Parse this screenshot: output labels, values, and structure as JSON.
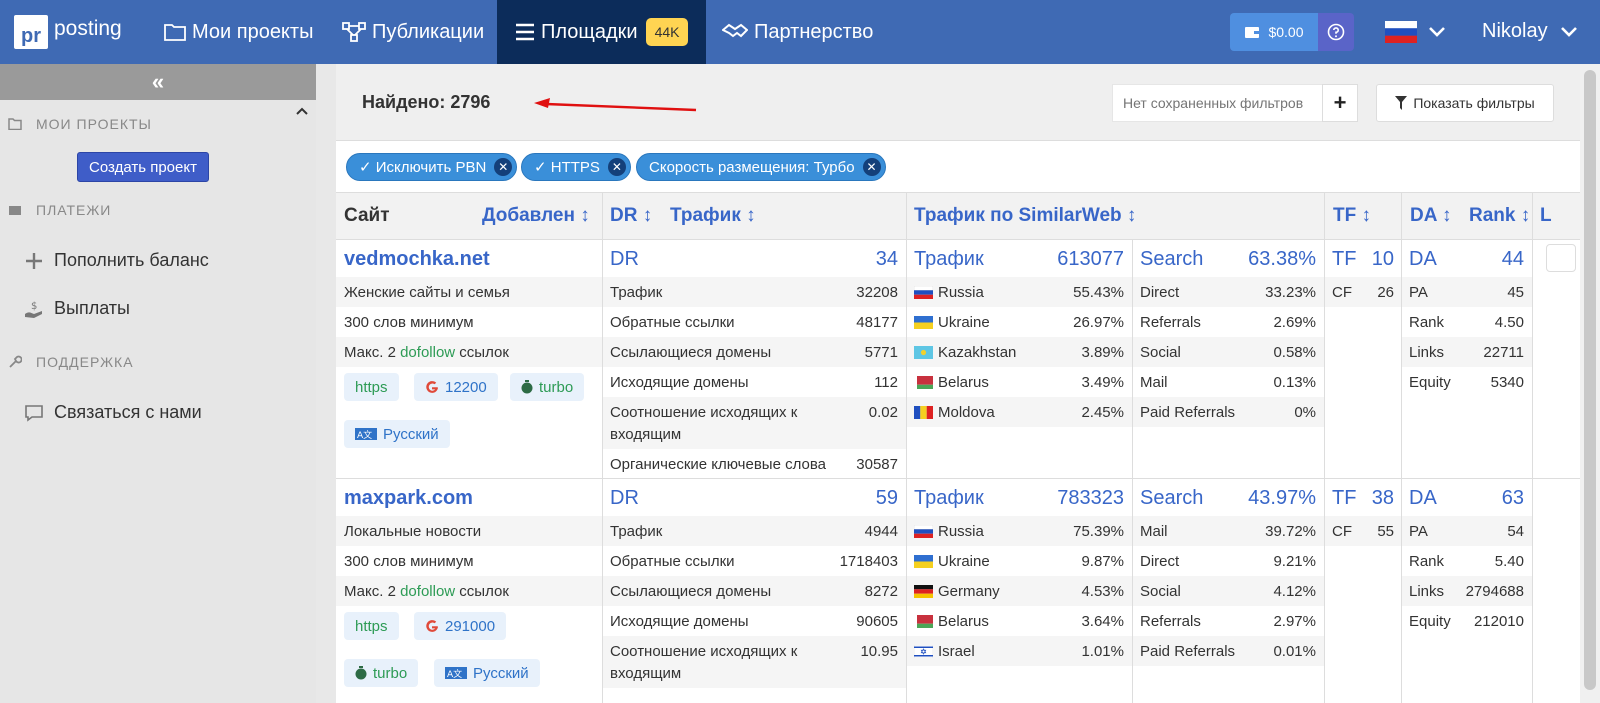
{
  "topbar": {
    "logo_box": "pr",
    "logo_word": "posting",
    "nav": [
      {
        "label": "Мои проекты"
      },
      {
        "label": "Публикации"
      },
      {
        "label": "Площадки",
        "badge": "44K"
      },
      {
        "label": "Партнерство"
      }
    ],
    "balance": "$0.00",
    "user": "Nikolay"
  },
  "sidebar": {
    "collapse": "«",
    "my_projects": "МОИ ПРОЕКТЫ",
    "create_project": "Создать проект",
    "payments": "ПЛАТЕЖИ",
    "topup": "Пополнить баланс",
    "payouts": "Выплаты",
    "support": "ПОДДЕРЖКА",
    "contact": "Связаться с нами"
  },
  "header": {
    "found": "Найдено: 2796",
    "saved_filters_placeholder": "Нет сохраненных фильтров",
    "show_filters": "Показать фильтры"
  },
  "chips": [
    "✓ Исключить PBN",
    "✓ HTTPS",
    "Скорость размещения: Турбо"
  ],
  "table_head": {
    "site": "Сайт",
    "added": "Добавлен",
    "dr": "DR",
    "traffic": "Трафик",
    "similarweb": "Трафик по SimilarWeb",
    "tf": "TF",
    "da": "DA",
    "rank": "Rank",
    "l": "L"
  },
  "rows": [
    {
      "site": "vedmochka.net",
      "category": "Женские сайты и семья",
      "words": "300 слов минимум",
      "links_prefix": "Макс. 2 ",
      "links_dofollow": "dofollow",
      "links_suffix": " ссылок",
      "tag_https": "https",
      "tag_google": "12200",
      "tag_turbo": "turbo",
      "tag_lang": "Русский",
      "dr_label": "DR",
      "dr": "34",
      "metrics": [
        {
          "label": "Трафик",
          "value": "32208"
        },
        {
          "label": "Обратные ссылки",
          "value": "48177"
        },
        {
          "label": "Ссылающиеся домены",
          "value": "5771"
        },
        {
          "label": "Исходящие домены",
          "value": "112"
        },
        {
          "label": "Соотношение исходящих к",
          "label2": "входящим",
          "value": "0.02"
        },
        {
          "label": "Органические ключевые слова",
          "value": "30587"
        }
      ],
      "sw_label": "Трафик",
      "sw_traffic": "613077",
      "countries": [
        {
          "name": "Russia",
          "flag": "ru",
          "value": "55.43%"
        },
        {
          "name": "Ukraine",
          "flag": "ua",
          "value": "26.97%"
        },
        {
          "name": "Kazakhstan",
          "flag": "kz",
          "value": "3.89%"
        },
        {
          "name": "Belarus",
          "flag": "by",
          "value": "3.49%"
        },
        {
          "name": "Moldova",
          "flag": "md",
          "value": "2.45%"
        }
      ],
      "search_label": "Search",
      "search": "63.38%",
      "sources": [
        {
          "name": "Direct",
          "value": "33.23%"
        },
        {
          "name": "Referrals",
          "value": "2.69%"
        },
        {
          "name": "Social",
          "value": "0.58%"
        },
        {
          "name": "Mail",
          "value": "0.13%"
        },
        {
          "name": "Paid Referrals",
          "value": "0%"
        }
      ],
      "tf_label": "TF",
      "tf": "10",
      "cf_label": "CF",
      "cf": "26",
      "da_label": "DA",
      "da": "44",
      "moz": [
        {
          "name": "PA",
          "value": "45"
        },
        {
          "name": "Rank",
          "value": "4.50"
        },
        {
          "name": "Links",
          "value": "22711"
        },
        {
          "name": "Equity",
          "value": "5340"
        }
      ]
    },
    {
      "site": "maxpark.com",
      "category": "Локальные новости",
      "words": "300 слов минимум",
      "links_prefix": "Макс. 2 ",
      "links_dofollow": "dofollow",
      "links_suffix": " ссылок",
      "tag_https": "https",
      "tag_google": "291000",
      "tag_turbo": "turbo",
      "tag_lang": "Русский",
      "dr_label": "DR",
      "dr": "59",
      "metrics": [
        {
          "label": "Трафик",
          "value": "4944"
        },
        {
          "label": "Обратные ссылки",
          "value": "1718403"
        },
        {
          "label": "Ссылающиеся домены",
          "value": "8272"
        },
        {
          "label": "Исходящие домены",
          "value": "90605"
        },
        {
          "label": "Соотношение исходящих к",
          "label2": "входящим",
          "value": "10.95"
        }
      ],
      "sw_label": "Трафик",
      "sw_traffic": "783323",
      "countries": [
        {
          "name": "Russia",
          "flag": "ru",
          "value": "75.39%"
        },
        {
          "name": "Ukraine",
          "flag": "ua",
          "value": "9.87%"
        },
        {
          "name": "Germany",
          "flag": "de",
          "value": "4.53%"
        },
        {
          "name": "Belarus",
          "flag": "by",
          "value": "3.64%"
        },
        {
          "name": "Israel",
          "flag": "il",
          "value": "1.01%"
        }
      ],
      "search_label": "Search",
      "search": "43.97%",
      "sources": [
        {
          "name": "Mail",
          "value": "39.72%"
        },
        {
          "name": "Direct",
          "value": "9.21%"
        },
        {
          "name": "Social",
          "value": "4.12%"
        },
        {
          "name": "Referrals",
          "value": "2.97%"
        },
        {
          "name": "Paid Referrals",
          "value": "0.01%"
        }
      ],
      "tf_label": "TF",
      "tf": "38",
      "cf_label": "CF",
      "cf": "55",
      "da_label": "DA",
      "da": "63",
      "moz": [
        {
          "name": "PA",
          "value": "54"
        },
        {
          "name": "Rank",
          "value": "5.40"
        },
        {
          "name": "Links",
          "value": "2794688"
        },
        {
          "name": "Equity",
          "value": "212010"
        }
      ]
    }
  ]
}
